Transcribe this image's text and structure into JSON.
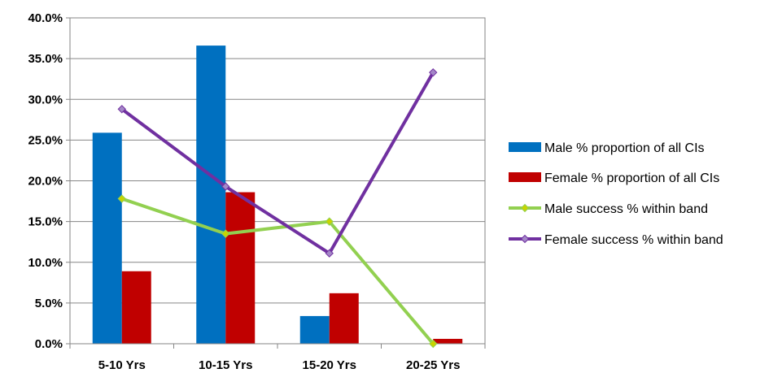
{
  "chart_data": {
    "type": "bar",
    "categories": [
      "5-10 Yrs",
      "10-15 Yrs",
      "15-20 Yrs",
      "20-25 Yrs"
    ],
    "ylim": [
      0,
      40
    ],
    "yticks": [
      "0.0%",
      "5.0%",
      "10.0%",
      "15.0%",
      "20.0%",
      "25.0%",
      "30.0%",
      "35.0%",
      "40.0%"
    ],
    "grid": true,
    "legend_position": "right",
    "series": [
      {
        "name": "Male % proportion of all CIs",
        "kind": "bar",
        "color": "#0070C0",
        "values": [
          25.9,
          36.6,
          3.4,
          0.0
        ]
      },
      {
        "name": "Female % proportion of all CIs",
        "kind": "bar",
        "color": "#C00000",
        "values": [
          8.9,
          18.6,
          6.2,
          0.6
        ]
      },
      {
        "name": "Male success % within band",
        "kind": "line",
        "color": "#92D050",
        "marker_color": "#C8D400",
        "values": [
          17.8,
          13.5,
          15.0,
          0.0
        ]
      },
      {
        "name": "Female success % within band",
        "kind": "line",
        "color": "#7030A0",
        "marker_color": "#A487C7",
        "values": [
          28.8,
          19.3,
          11.1,
          33.3
        ]
      }
    ]
  }
}
